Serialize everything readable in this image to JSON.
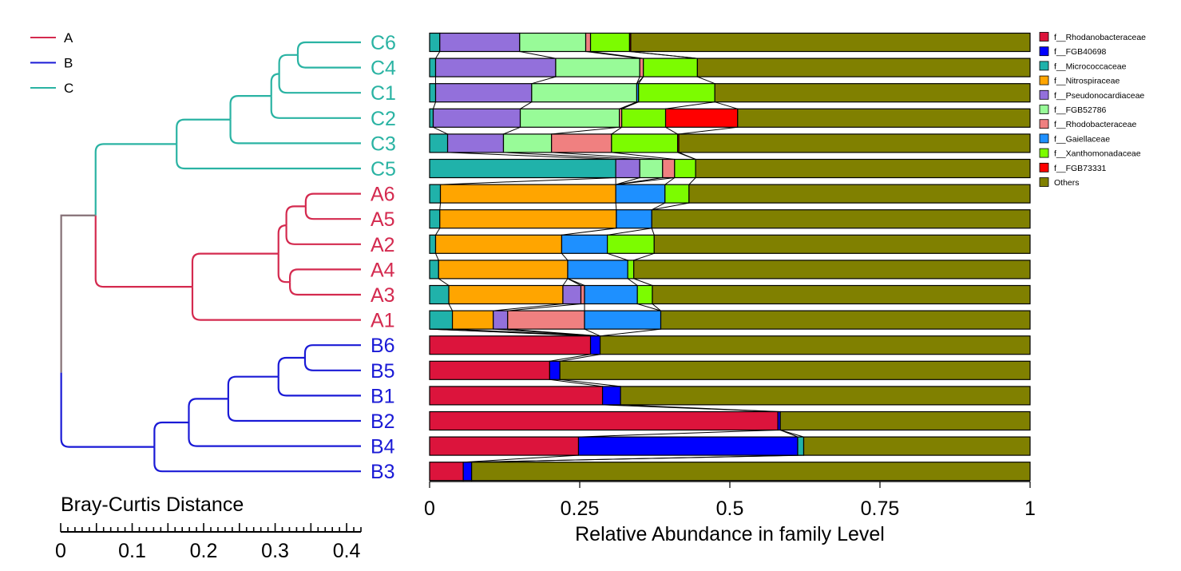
{
  "chart_data": {
    "type": "bar",
    "orientation": "horizontal",
    "stacked": true,
    "xlabel": "Relative Abundance in family Level",
    "xlim": [
      0,
      1
    ],
    "x_ticks": [
      0,
      0.25,
      0.5,
      0.75,
      1
    ],
    "x_tick_labels": [
      "0",
      "0.25",
      "0.5",
      "0.75",
      "1"
    ],
    "families": [
      {
        "name": "f__Rhodanobacteraceae",
        "color": "#dc143c"
      },
      {
        "name": "f__FGB40698",
        "color": "#0000ff"
      },
      {
        "name": "f__Micrococcaceae",
        "color": "#20b2aa"
      },
      {
        "name": "f__Nitrospiraceae",
        "color": "#ffa500"
      },
      {
        "name": "f__Pseudonocardiaceae",
        "color": "#9370db"
      },
      {
        "name": "f__FGB52786",
        "color": "#98fb98"
      },
      {
        "name": "f__Rhodobacteraceae",
        "color": "#f08080"
      },
      {
        "name": "f__Gaiellaceae",
        "color": "#1e90ff"
      },
      {
        "name": "f__Xanthomonadaceae",
        "color": "#7cfc00"
      },
      {
        "name": "f__FGB73331",
        "color": "#ff0000"
      },
      {
        "name": "Others",
        "color": "#808000"
      }
    ],
    "samples": [
      "C6",
      "C4",
      "C1",
      "C2",
      "C3",
      "C5",
      "A6",
      "A5",
      "A2",
      "A4",
      "A3",
      "A1",
      "B6",
      "B5",
      "B1",
      "B2",
      "B4",
      "B3"
    ],
    "sample_groups": [
      "C",
      "C",
      "C",
      "C",
      "C",
      "C",
      "A",
      "A",
      "A",
      "A",
      "A",
      "A",
      "B",
      "B",
      "B",
      "B",
      "B",
      "B"
    ],
    "abundance": [
      [
        0,
        0,
        0.017,
        0,
        0.133,
        0.11,
        0.008,
        0,
        0.065,
        0.002,
        0.665
      ],
      [
        0,
        0,
        0.01,
        0,
        0.2,
        0.14,
        0.006,
        0,
        0.09,
        0,
        0.554
      ],
      [
        0,
        0,
        0.01,
        0,
        0.16,
        0.175,
        0,
        0.003,
        0.127,
        0,
        0.525
      ],
      [
        0,
        0,
        0.006,
        0,
        0.145,
        0.165,
        0.004,
        0,
        0.073,
        0.12,
        0.487
      ],
      [
        0,
        0,
        0.03,
        0,
        0.093,
        0.08,
        0.1,
        0,
        0.11,
        0.002,
        0.585
      ],
      [
        0,
        0,
        0.31,
        0,
        0.04,
        0.038,
        0.02,
        0,
        0.035,
        0,
        0.557
      ],
      [
        0,
        0,
        0.018,
        0.292,
        0,
        0,
        0,
        0.082,
        0.04,
        0,
        0.568
      ],
      [
        0,
        0,
        0.017,
        0.294,
        0,
        0,
        0,
        0.059,
        0,
        0,
        0.63
      ],
      [
        0,
        0,
        0.01,
        0.21,
        0,
        0,
        0,
        0.076,
        0.078,
        0,
        0.626
      ],
      [
        0,
        0,
        0.015,
        0.215,
        0,
        0,
        0,
        0.1,
        0.01,
        0,
        0.66
      ],
      [
        0,
        0,
        0.032,
        0.19,
        0.03,
        0,
        0.006,
        0.088,
        0.025,
        0,
        0.629
      ],
      [
        0,
        0,
        0.038,
        0.068,
        0.024,
        0,
        0.128,
        0.127,
        0,
        0,
        0.615
      ],
      [
        0.268,
        0.016,
        0,
        0,
        0,
        0,
        0,
        0,
        0,
        0,
        0.716
      ],
      [
        0.2,
        0.017,
        0,
        0,
        0,
        0,
        0,
        0,
        0,
        0,
        0.783
      ],
      [
        0.288,
        0.03,
        0,
        0,
        0,
        0,
        0,
        0,
        0,
        0,
        0.682
      ],
      [
        0.58,
        0.004,
        0,
        0,
        0,
        0,
        0,
        0,
        0,
        0,
        0.416
      ],
      [
        0.248,
        0.365,
        0.01,
        0,
        0,
        0,
        0,
        0,
        0,
        0,
        0.377
      ],
      [
        0.056,
        0.014,
        0,
        0,
        0,
        0,
        0,
        0,
        0,
        0,
        0.93
      ]
    ],
    "dendrogram": {
      "title": "Bray-Curtis Distance",
      "axis_ticks": [
        0,
        0.1,
        0.2,
        0.3,
        0.4
      ],
      "axis_tick_labels": [
        "0",
        "0.1",
        "0.2",
        "0.3",
        "0.4"
      ],
      "legend": [
        {
          "label": "A",
          "color": "#d42a4f"
        },
        {
          "label": "B",
          "color": "#1a1ad6"
        },
        {
          "label": "C",
          "color": "#2ab3a3"
        }
      ],
      "root_color": "#857076",
      "merges": [
        {
          "id": "m1",
          "a": "C6",
          "b": "C4",
          "height": 0.088,
          "group": "C"
        },
        {
          "id": "m2",
          "a": "m1",
          "b": "C1",
          "height": 0.114,
          "group": "C"
        },
        {
          "id": "m3",
          "a": "m2",
          "b": "C2",
          "height": 0.125,
          "group": "C"
        },
        {
          "id": "m4",
          "a": "m3",
          "b": "C3",
          "height": 0.182,
          "group": "C"
        },
        {
          "id": "m5",
          "a": "m4",
          "b": "C5",
          "height": 0.257,
          "group": "C"
        },
        {
          "id": "m6",
          "a": "A6",
          "b": "A5",
          "height": 0.077,
          "group": "A"
        },
        {
          "id": "m7",
          "a": "m6",
          "b": "A2",
          "height": 0.104,
          "group": "A"
        },
        {
          "id": "m8",
          "a": "A4",
          "b": "A3",
          "height": 0.099,
          "group": "A"
        },
        {
          "id": "m9",
          "a": "m7",
          "b": "m8",
          "height": 0.115,
          "group": "A"
        },
        {
          "id": "m10",
          "a": "m9",
          "b": "A1",
          "height": 0.235,
          "group": "A"
        },
        {
          "id": "m11",
          "a": "m5",
          "b": "m10",
          "height": 0.37,
          "group": "C"
        },
        {
          "id": "m12",
          "a": "B6",
          "b": "B5",
          "height": 0.078,
          "group": "B"
        },
        {
          "id": "m13",
          "a": "m12",
          "b": "B1",
          "height": 0.115,
          "group": "B"
        },
        {
          "id": "m14",
          "a": "m13",
          "b": "B2",
          "height": 0.185,
          "group": "B"
        },
        {
          "id": "m15",
          "a": "m14",
          "b": "B4",
          "height": 0.24,
          "group": "B"
        },
        {
          "id": "m16",
          "a": "m15",
          "b": "B3",
          "height": 0.288,
          "group": "B"
        },
        {
          "id": "m17",
          "a": "m11",
          "b": "m16",
          "height": 0.418,
          "group": "root"
        }
      ]
    }
  }
}
